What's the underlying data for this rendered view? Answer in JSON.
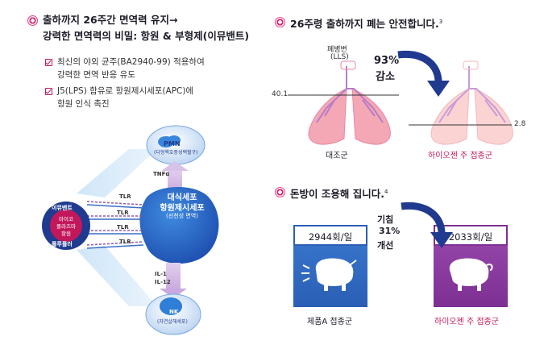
{
  "left": {
    "title_line1": "출하까지 26주간 면역력 유지→",
    "title_line2": "강력한 면역력의 비밀: 항원 & 부형제(이뮤밴트)",
    "bullets": [
      {
        "line1": "최신의 야외 균주(BA2940-99) 적용하여",
        "line2": "강력한 면역 반응 유도"
      },
      {
        "line1": "J5(LPS) 함유로 항원제시세포(APC)에",
        "line2": "항원 인식 촉진"
      }
    ],
    "diagram": {
      "pmn_label": "PMN",
      "pmn_sub": "(다형핵호중성백혈구)",
      "tnf_label": "TNFα",
      "center_line1": "대식세포",
      "center_line2": "항원제시세포",
      "center_sub": "(선천성 면역)",
      "tlr_labels": [
        "TLR",
        "TLR",
        "TLR",
        "TLR"
      ],
      "source_top": "이뮤밴트",
      "source_mid": [
        "마이코",
        "플라즈마",
        "항원"
      ],
      "source_bottom": "플루플러",
      "il_line1": "IL-1",
      "il_line2": "IL-12",
      "nk_label": "NK",
      "nk_sub": "(자연살해세포)"
    }
  },
  "lung": {
    "title": "26주령 출하까지 폐는 안전합니다.",
    "footnote": "3",
    "lesion_label_line1": "폐병변",
    "lesion_label_line2": "(LLS)",
    "value_left": "40.1",
    "value_right": "2.8",
    "reduction_pct": "93%",
    "reduction_word": "감소",
    "left_caption": "대조군",
    "right_caption": "하이오젠 주 접종군"
  },
  "cough": {
    "title": "돈방이 조용해 집니다.",
    "footnote": "4",
    "left_value": "2944회/일",
    "right_value": "2033회/일",
    "improve_line1": "기침",
    "improve_line2": "31%",
    "improve_line3": "개선",
    "left_caption": "제품A 접종군",
    "right_caption": "하이오젠 주 접종군"
  },
  "colors": {
    "accent": "#c2185b",
    "navy": "#1f3a8f",
    "blue": "#2a68c8",
    "purple": "#8b3a9e",
    "lung_pink": "#f4a7b4",
    "lung_pale": "#fbd3d3"
  }
}
